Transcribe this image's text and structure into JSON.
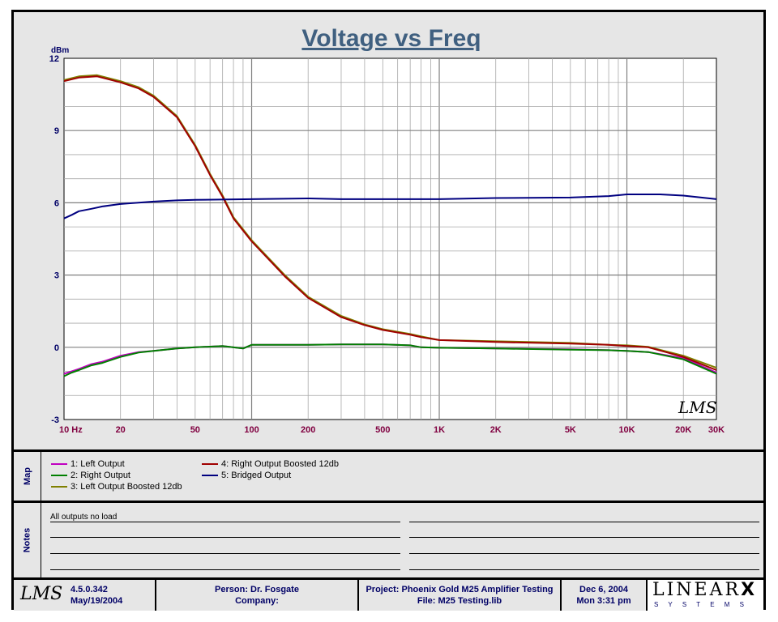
{
  "chart_data": {
    "type": "line",
    "title": "Voltage vs Freq",
    "ylabel": "dBm",
    "xscale": "log",
    "xlim": [
      10,
      30000
    ],
    "ylim": [
      -3,
      12
    ],
    "grid": true,
    "xticks": [
      {
        "v": 10,
        "label": "10  Hz"
      },
      {
        "v": 20,
        "label": "20"
      },
      {
        "v": 50,
        "label": "50"
      },
      {
        "v": 100,
        "label": "100"
      },
      {
        "v": 200,
        "label": "200"
      },
      {
        "v": 500,
        "label": "500"
      },
      {
        "v": 1000,
        "label": "1K"
      },
      {
        "v": 2000,
        "label": "2K"
      },
      {
        "v": 5000,
        "label": "5K"
      },
      {
        "v": 10000,
        "label": "10K"
      },
      {
        "v": 20000,
        "label": "20K"
      },
      {
        "v": 30000,
        "label": "30K"
      }
    ],
    "yticks": [
      {
        "v": 12,
        "label": "12"
      },
      {
        "v": 9,
        "label": "9"
      },
      {
        "v": 6,
        "label": "6"
      },
      {
        "v": 3,
        "label": "3"
      },
      {
        "v": 0,
        "label": "0"
      },
      {
        "v": -3,
        "label": "-3"
      }
    ],
    "series": [
      {
        "name": "1: Left Output",
        "color": "#c000c0",
        "points": [
          [
            10,
            -1.1
          ],
          [
            11,
            -1.0
          ],
          [
            12,
            -0.9
          ],
          [
            14,
            -0.7
          ],
          [
            16,
            -0.6
          ],
          [
            20,
            -0.35
          ],
          [
            25,
            -0.2
          ],
          [
            30,
            -0.15
          ],
          [
            40,
            -0.05
          ],
          [
            50,
            0.0
          ],
          [
            70,
            0.05
          ],
          [
            90,
            -0.05
          ],
          [
            100,
            0.1
          ],
          [
            200,
            0.1
          ],
          [
            300,
            0.12
          ],
          [
            500,
            0.12
          ],
          [
            700,
            0.08
          ],
          [
            800,
            0.0
          ],
          [
            1000,
            -0.02
          ],
          [
            2000,
            -0.05
          ],
          [
            5000,
            -0.08
          ],
          [
            8000,
            -0.12
          ],
          [
            10000,
            -0.15
          ],
          [
            13000,
            -0.2
          ],
          [
            20000,
            -0.45
          ],
          [
            30000,
            -1.05
          ]
        ]
      },
      {
        "name": "2: Right Output",
        "color": "#008000",
        "points": [
          [
            10,
            -1.2
          ],
          [
            11,
            -1.05
          ],
          [
            12,
            -0.95
          ],
          [
            14,
            -0.75
          ],
          [
            16,
            -0.65
          ],
          [
            20,
            -0.4
          ],
          [
            25,
            -0.22
          ],
          [
            30,
            -0.15
          ],
          [
            40,
            -0.05
          ],
          [
            50,
            0.0
          ],
          [
            70,
            0.05
          ],
          [
            90,
            -0.05
          ],
          [
            100,
            0.1
          ],
          [
            200,
            0.1
          ],
          [
            300,
            0.12
          ],
          [
            500,
            0.12
          ],
          [
            700,
            0.08
          ],
          [
            800,
            0.0
          ],
          [
            1000,
            -0.02
          ],
          [
            2000,
            -0.05
          ],
          [
            5000,
            -0.1
          ],
          [
            8000,
            -0.12
          ],
          [
            10000,
            -0.15
          ],
          [
            13000,
            -0.2
          ],
          [
            20000,
            -0.5
          ],
          [
            30000,
            -1.1
          ]
        ]
      },
      {
        "name": "3: Left Output Boosted 12db",
        "color": "#808000",
        "points": [
          [
            10,
            11.1
          ],
          [
            12,
            11.25
          ],
          [
            15,
            11.3
          ],
          [
            20,
            11.05
          ],
          [
            25,
            10.8
          ],
          [
            30,
            10.45
          ],
          [
            40,
            9.6
          ],
          [
            50,
            8.4
          ],
          [
            60,
            7.2
          ],
          [
            70,
            6.3
          ],
          [
            80,
            5.4
          ],
          [
            90,
            4.9
          ],
          [
            100,
            4.45
          ],
          [
            150,
            3.0
          ],
          [
            200,
            2.1
          ],
          [
            300,
            1.3
          ],
          [
            400,
            0.95
          ],
          [
            500,
            0.75
          ],
          [
            700,
            0.55
          ],
          [
            800,
            0.45
          ],
          [
            1000,
            0.3
          ],
          [
            2000,
            0.25
          ],
          [
            5000,
            0.18
          ],
          [
            8000,
            0.1
          ],
          [
            10000,
            0.08
          ],
          [
            13000,
            0.02
          ],
          [
            20000,
            -0.35
          ],
          [
            30000,
            -0.85
          ]
        ]
      },
      {
        "name": "4: Right Output Boosted 12db",
        "color": "#a00000",
        "points": [
          [
            10,
            11.05
          ],
          [
            12,
            11.2
          ],
          [
            15,
            11.25
          ],
          [
            20,
            11.0
          ],
          [
            25,
            10.75
          ],
          [
            30,
            10.4
          ],
          [
            40,
            9.55
          ],
          [
            50,
            8.35
          ],
          [
            60,
            7.15
          ],
          [
            70,
            6.25
          ],
          [
            80,
            5.35
          ],
          [
            90,
            4.85
          ],
          [
            100,
            4.4
          ],
          [
            150,
            2.95
          ],
          [
            200,
            2.05
          ],
          [
            300,
            1.25
          ],
          [
            400,
            0.92
          ],
          [
            500,
            0.72
          ],
          [
            700,
            0.52
          ],
          [
            800,
            0.42
          ],
          [
            1000,
            0.3
          ],
          [
            2000,
            0.22
          ],
          [
            5000,
            0.15
          ],
          [
            8000,
            0.1
          ],
          [
            10000,
            0.05
          ],
          [
            13000,
            0.0
          ],
          [
            20000,
            -0.4
          ],
          [
            30000,
            -0.95
          ]
        ]
      },
      {
        "name": "5: Bridged Output",
        "color": "#000080",
        "points": [
          [
            10,
            5.35
          ],
          [
            11,
            5.5
          ],
          [
            12,
            5.65
          ],
          [
            14,
            5.75
          ],
          [
            16,
            5.85
          ],
          [
            20,
            5.95
          ],
          [
            30,
            6.05
          ],
          [
            40,
            6.1
          ],
          [
            50,
            6.12
          ],
          [
            100,
            6.15
          ],
          [
            200,
            6.18
          ],
          [
            300,
            6.15
          ],
          [
            500,
            6.15
          ],
          [
            1000,
            6.15
          ],
          [
            2000,
            6.2
          ],
          [
            5000,
            6.22
          ],
          [
            8000,
            6.28
          ],
          [
            10000,
            6.35
          ],
          [
            15000,
            6.35
          ],
          [
            20000,
            6.3
          ],
          [
            30000,
            6.15
          ]
        ]
      }
    ]
  },
  "watermark": "LMS",
  "map": {
    "label": "Map"
  },
  "notes": {
    "label": "Notes",
    "text": "All outputs no load"
  },
  "footer": {
    "logo": "LMS",
    "version": "4.5.0.342",
    "version_date": "May/19/2004",
    "person": "Person: Dr. Fosgate",
    "company": "Company:",
    "project": "Project: Phoenix Gold M25 Amplifier Testing",
    "file": "File: M25 Testing.lib",
    "date": "Dec  6, 2004",
    "time": "Mon  3:31 pm",
    "brand": "LINEAR",
    "brand_x": "X",
    "brand_sub": "S Y S T E M S"
  }
}
